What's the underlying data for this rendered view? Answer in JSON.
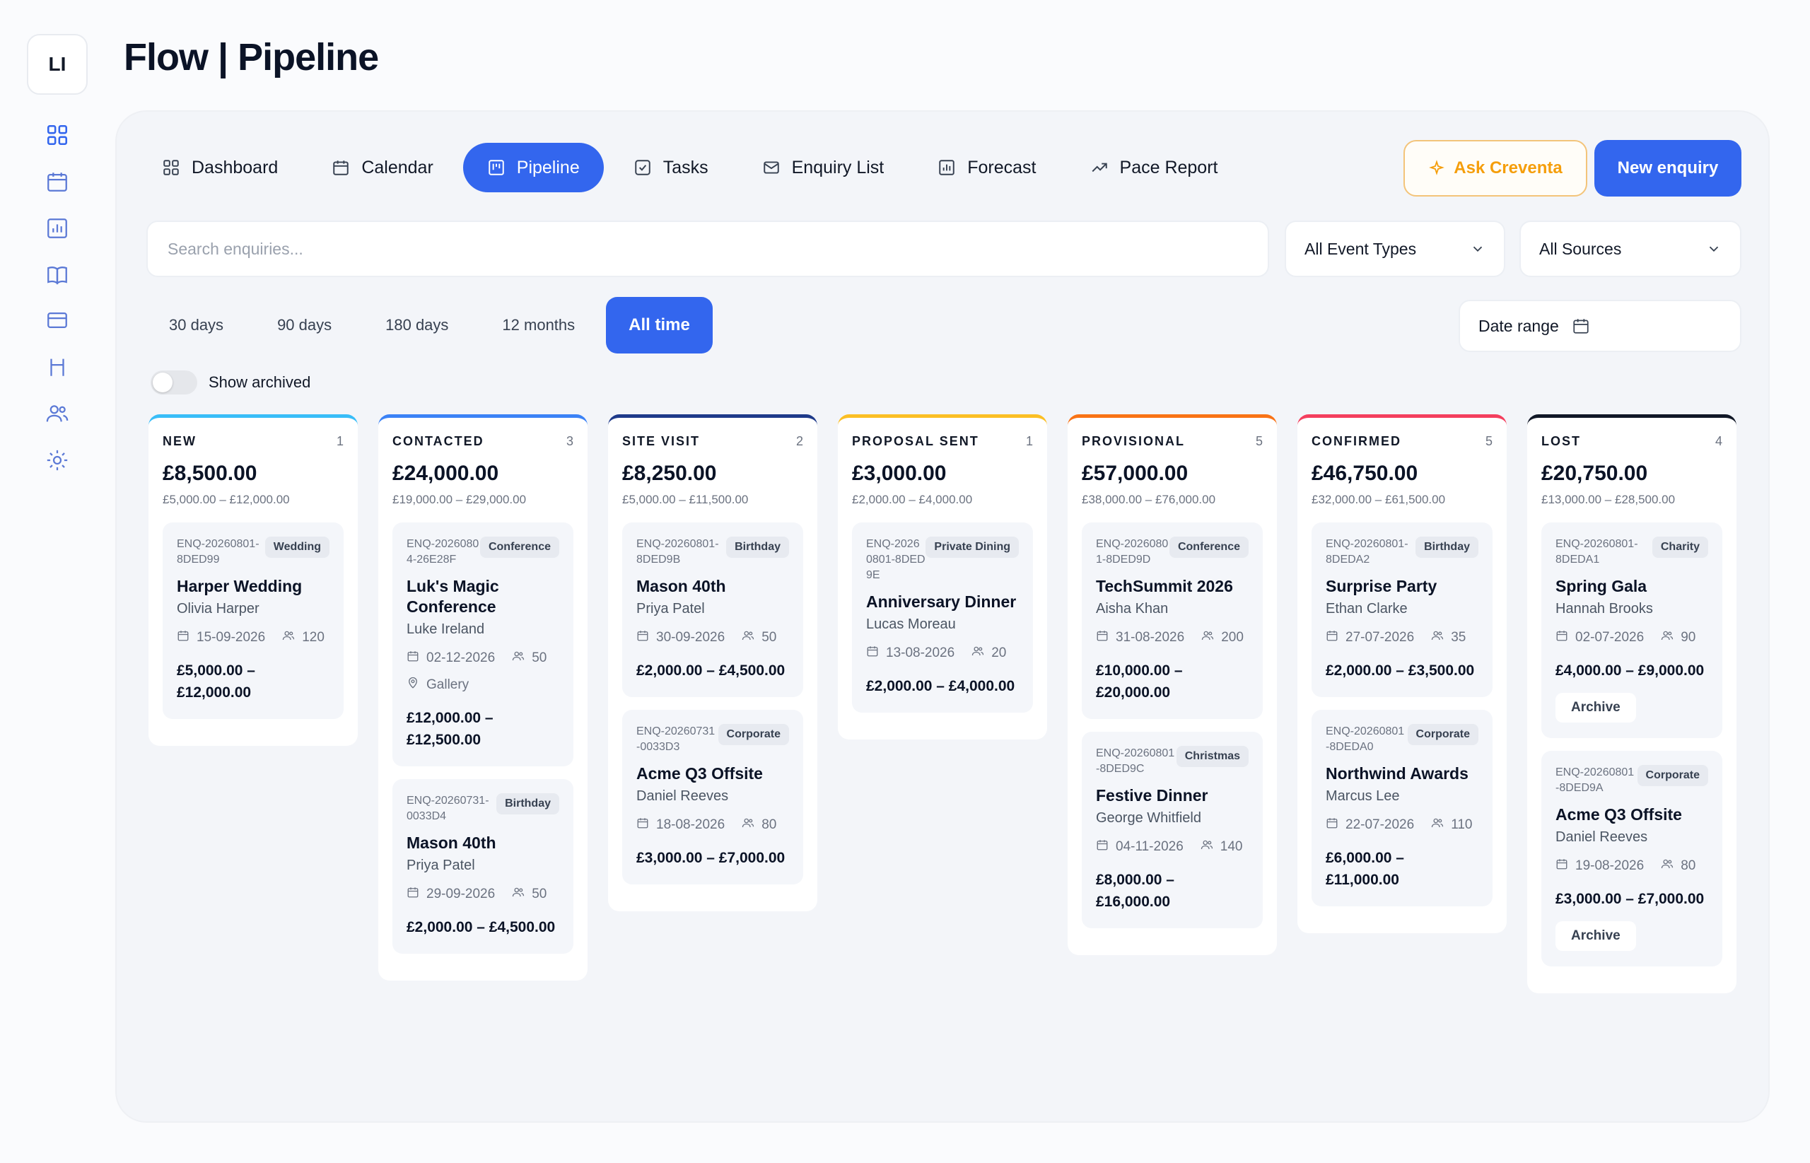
{
  "app": {
    "logo_initials": "LI",
    "title": "Flow | Pipeline"
  },
  "sidebar": {
    "icons": [
      "grid-icon",
      "calendar-icon",
      "chart-icon",
      "book-icon",
      "card-icon",
      "table-icon",
      "users-icon",
      "settings-icon"
    ]
  },
  "tabs": [
    {
      "label": "Dashboard",
      "icon": "grid-icon",
      "active": false
    },
    {
      "label": "Calendar",
      "icon": "calendar-icon",
      "active": false
    },
    {
      "label": "Pipeline",
      "icon": "kanban-icon",
      "active": true
    },
    {
      "label": "Tasks",
      "icon": "checkbox-icon",
      "active": false
    },
    {
      "label": "Enquiry List",
      "icon": "mail-icon",
      "active": false
    },
    {
      "label": "Forecast",
      "icon": "bar-chart-icon",
      "active": false
    },
    {
      "label": "Pace Report",
      "icon": "trend-icon",
      "active": false
    }
  ],
  "actions": {
    "ask": "Ask Creventa",
    "new": "New enquiry"
  },
  "filters": {
    "search_placeholder": "Search enquiries...",
    "event_types": "All Event Types",
    "sources": "All Sources",
    "periods": [
      "30 days",
      "90 days",
      "180 days",
      "12 months",
      "All time"
    ],
    "active_period": "All time",
    "date_range": "Date range",
    "show_archived": "Show archived"
  },
  "colors": {
    "accent": "#3366ee",
    "new": "#38bdf8",
    "contacted": "#3b82f6",
    "site_visit": "#1e3a8a",
    "proposal": "#fbbf24",
    "provisional": "#f97316",
    "confirmed": "#f43f5e",
    "lost": "#111827"
  },
  "columns": [
    {
      "name": "NEW",
      "count": "1",
      "total": "£8,500.00",
      "range": "£5,000.00 – £12,000.00",
      "color": "#38bdf8",
      "cards": [
        {
          "id": "ENQ-20260801-8DED99",
          "badge": "Wedding",
          "title": "Harper Wedding",
          "person": "Olivia Harper",
          "date": "15-09-2026",
          "guests": "120",
          "price": "£5,000.00 – £12,000.00"
        }
      ]
    },
    {
      "name": "CONTACTED",
      "count": "3",
      "total": "£24,000.00",
      "range": "£19,000.00 – £29,000.00",
      "color": "#3b82f6",
      "cards": [
        {
          "id": "ENQ-20260804-26E28F",
          "badge": "Conference",
          "title": "Luk's Magic Conference",
          "person": "Luke Ireland",
          "date": "02-12-2026",
          "guests": "50",
          "location": "Gallery",
          "price": "£12,000.00 – £12,500.00"
        },
        {
          "id": "ENQ-20260731-0033D4",
          "badge": "Birthday",
          "title": "Mason 40th",
          "person": "Priya Patel",
          "date": "29-09-2026",
          "guests": "50",
          "price": "£2,000.00 – £4,500.00"
        }
      ]
    },
    {
      "name": "SITE VISIT",
      "count": "2",
      "total": "£8,250.00",
      "range": "£5,000.00 – £11,500.00",
      "color": "#1e3a8a",
      "cards": [
        {
          "id": "ENQ-20260801-8DED9B",
          "badge": "Birthday",
          "title": "Mason 40th",
          "person": "Priya Patel",
          "date": "30-09-2026",
          "guests": "50",
          "price": "£2,000.00 – £4,500.00"
        },
        {
          "id": "ENQ-20260731-0033D3",
          "badge": "Corporate",
          "title": "Acme Q3 Offsite",
          "person": "Daniel Reeves",
          "date": "18-08-2026",
          "guests": "80",
          "price": "£3,000.00 – £7,000.00"
        }
      ]
    },
    {
      "name": "PROPOSAL SENT",
      "count": "1",
      "total": "£3,000.00",
      "range": "£2,000.00 – £4,000.00",
      "color": "#fbbf24",
      "cards": [
        {
          "id": "ENQ-20260801-8DED9E",
          "badge": "Private Dining",
          "title": "Anniversary Dinner",
          "person": "Lucas Moreau",
          "date": "13-08-2026",
          "guests": "20",
          "price": "£2,000.00 – £4,000.00"
        }
      ]
    },
    {
      "name": "PROVISIONAL",
      "count": "5",
      "total": "£57,000.00",
      "range": "£38,000.00 – £76,000.00",
      "color": "#f97316",
      "cards": [
        {
          "id": "ENQ-20260801-8DED9D",
          "badge": "Conference",
          "title": "TechSummit 2026",
          "person": "Aisha Khan",
          "date": "31-08-2026",
          "guests": "200",
          "price": "£10,000.00 – £20,000.00"
        },
        {
          "id": "ENQ-20260801-8DED9C",
          "badge": "Christmas",
          "title": "Festive Dinner",
          "person": "George Whitfield",
          "date": "04-11-2026",
          "guests": "140",
          "price": "£8,000.00 – £16,000.00"
        }
      ]
    },
    {
      "name": "CONFIRMED",
      "count": "5",
      "total": "£46,750.00",
      "range": "£32,000.00 – £61,500.00",
      "color": "#f43f5e",
      "cards": [
        {
          "id": "ENQ-20260801-8DEDA2",
          "badge": "Birthday",
          "title": "Surprise Party",
          "person": "Ethan Clarke",
          "date": "27-07-2026",
          "guests": "35",
          "price": "£2,000.00 – £3,500.00"
        },
        {
          "id": "ENQ-20260801-8DEDA0",
          "badge": "Corporate",
          "title": "Northwind Awards",
          "person": "Marcus Lee",
          "date": "22-07-2026",
          "guests": "110",
          "price": "£6,000.00 – £11,000.00"
        }
      ]
    },
    {
      "name": "LOST",
      "count": "4",
      "total": "£20,750.00",
      "range": "£13,000.00 – £28,500.00",
      "color": "#111827",
      "cards": [
        {
          "id": "ENQ-20260801-8DEDA1",
          "badge": "Charity",
          "title": "Spring Gala",
          "person": "Hannah Brooks",
          "date": "02-07-2026",
          "guests": "90",
          "price": "£4,000.00 – £9,000.00",
          "archive": "Archive"
        },
        {
          "id": "ENQ-20260801-8DED9A",
          "badge": "Corporate",
          "title": "Acme Q3 Offsite",
          "person": "Daniel Reeves",
          "date": "19-08-2026",
          "guests": "80",
          "price": "£3,000.00 – £7,000.00",
          "archive": "Archive"
        }
      ]
    }
  ]
}
